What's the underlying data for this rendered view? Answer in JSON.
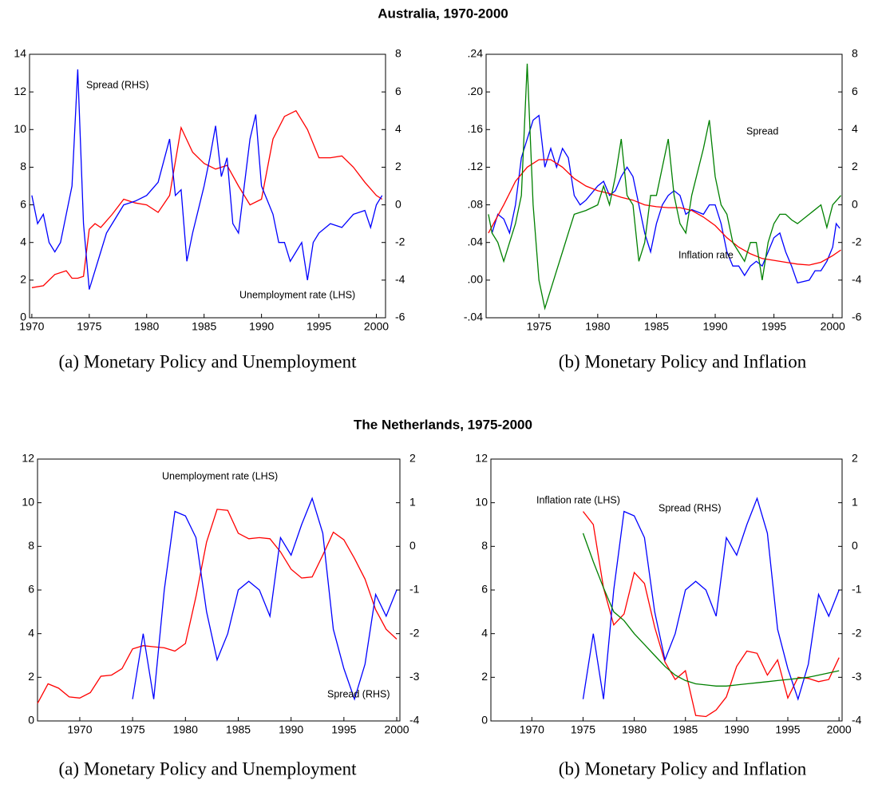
{
  "headings": [
    "Australia, 1970-2000",
    "The Netherlands, 1975-2000"
  ],
  "chart_data": [
    {
      "type": "line",
      "caption": "(a) Monetary Policy and Unemployment",
      "xlim": [
        1969.8,
        2000.8
      ],
      "xticks": [
        1970,
        1975,
        1980,
        1985,
        1990,
        1995,
        2000
      ],
      "ylim": [
        0,
        14
      ],
      "yticks": [
        0,
        2,
        4,
        6,
        8,
        10,
        12,
        14
      ],
      "y2lim": [
        -6,
        8
      ],
      "y2ticks": [
        -6,
        -4,
        -2,
        0,
        2,
        4,
        6,
        8
      ],
      "series": [
        {
          "name": "Unemployment rate (LHS)",
          "color": "#ff0000",
          "x": [
            1970,
            1971,
            1972,
            1973,
            1973.5,
            1974,
            1974.5,
            1975,
            1975.5,
            1976,
            1977,
            1978,
            1979,
            1980,
            1981,
            1982,
            1983,
            1984,
            1985,
            1986,
            1987,
            1988,
            1989,
            1990,
            1991,
            1992,
            1993,
            1994,
            1995,
            1996,
            1997,
            1998,
            1999,
            2000,
            2000.5
          ],
          "values": [
            1.6,
            1.7,
            2.3,
            2.5,
            2.1,
            2.1,
            2.2,
            4.7,
            5.0,
            4.8,
            5.5,
            6.3,
            6.1,
            6.0,
            5.6,
            6.5,
            10.1,
            8.8,
            8.2,
            7.9,
            8.1,
            7.0,
            6.0,
            6.3,
            9.5,
            10.7,
            11.0,
            10.0,
            8.5,
            8.5,
            8.6,
            8.0,
            7.2,
            6.5,
            6.3
          ]
        },
        {
          "name": "Spread (RHS)",
          "color": "#0000ff",
          "axis": "y2",
          "x": [
            1970,
            1970.5,
            1971,
            1971.5,
            1972,
            1972.5,
            1973,
            1973.5,
            1974,
            1974.5,
            1975,
            1975.5,
            1976,
            1976.5,
            1977,
            1978,
            1979,
            1980,
            1981,
            1982,
            1982.5,
            1983,
            1983.5,
            1984,
            1985,
            1985.5,
            1986,
            1986.5,
            1987,
            1987.5,
            1988,
            1988.5,
            1989,
            1989.5,
            1990,
            1991,
            1991.5,
            1992,
            1992.5,
            1993,
            1993.5,
            1994,
            1994.5,
            1995,
            1996,
            1997,
            1998,
            1999,
            1999.5,
            2000,
            2000.5
          ],
          "values": [
            0.5,
            -1.0,
            -0.5,
            -2.0,
            -2.5,
            -2.0,
            -0.5,
            1.0,
            7.2,
            -1.0,
            -4.5,
            -3.5,
            -2.5,
            -1.5,
            -1.0,
            0.0,
            0.2,
            0.5,
            1.2,
            3.5,
            0.5,
            0.8,
            -3.0,
            -1.5,
            1.0,
            2.5,
            4.2,
            1.5,
            2.5,
            -1.0,
            -1.5,
            1.0,
            3.5,
            4.8,
            1.0,
            -0.5,
            -2.0,
            -2.0,
            -3.0,
            -2.5,
            -2.0,
            -4.0,
            -2.0,
            -1.5,
            -1.0,
            -1.2,
            -0.5,
            -0.3,
            -1.2,
            0.0,
            0.5
          ]
        }
      ]
    },
    {
      "type": "line",
      "caption": "(b) Monetary Policy and Inflation",
      "xlim": [
        1970.5,
        2000.8
      ],
      "xticks": [
        1975,
        1980,
        1985,
        1990,
        1995,
        2000
      ],
      "ylim": [
        -0.04,
        0.24
      ],
      "yticks": [
        {
          "value": -0.04,
          "label": "-.04"
        },
        {
          "value": 0,
          "label": ".00"
        },
        {
          "value": 0.04,
          "label": ".04"
        },
        {
          "value": 0.08,
          "label": ".08"
        },
        {
          "value": 0.12,
          "label": ".12"
        },
        {
          "value": 0.16,
          "label": ".16"
        },
        {
          "value": 0.2,
          "label": ".20"
        },
        {
          "value": 0.24,
          "label": ".24"
        }
      ],
      "y2lim": [
        -6,
        8
      ],
      "y2ticks": [
        -6,
        -4,
        -2,
        0,
        2,
        4,
        6,
        8
      ],
      "series": [
        {
          "color": "#0000ff",
          "x": [
            1971,
            1971.5,
            1972,
            1972.5,
            1973,
            1973.5,
            1974,
            1974.5,
            1975,
            1975.5,
            1976,
            1976.5,
            1977,
            1977.5,
            1978,
            1978.5,
            1979,
            1980,
            1980.5,
            1981,
            1981.5,
            1982,
            1982.5,
            1983,
            1983.5,
            1984,
            1984.5,
            1985,
            1985.5,
            1986,
            1986.5,
            1987,
            1987.5,
            1988,
            1989,
            1989.5,
            1990,
            1990.5,
            1991,
            1991.5,
            1992,
            1992.5,
            1993,
            1993.5,
            1994,
            1994.5,
            1995,
            1995.5,
            1996,
            1996.5,
            1997,
            1998,
            1998.5,
            1999,
            1999.5,
            2000,
            2000.3,
            2000.6
          ],
          "values": [
            0.05,
            0.07,
            0.065,
            0.05,
            0.08,
            0.13,
            0.15,
            0.17,
            0.175,
            0.12,
            0.14,
            0.12,
            0.14,
            0.13,
            0.09,
            0.08,
            0.085,
            0.1,
            0.105,
            0.09,
            0.095,
            0.11,
            0.12,
            0.11,
            0.08,
            0.05,
            0.03,
            0.06,
            0.08,
            0.09,
            0.095,
            0.09,
            0.07,
            0.075,
            0.07,
            0.08,
            0.08,
            0.06,
            0.03,
            0.015,
            0.015,
            0.005,
            0.015,
            0.02,
            0.015,
            0.03,
            0.045,
            0.05,
            0.03,
            0.015,
            -0.003,
            0.0,
            0.01,
            0.01,
            0.02,
            0.035,
            0.06,
            0.055
          ]
        },
        {
          "name": "Inflation rate",
          "color": "#ff0000",
          "x": [
            1970.7,
            1972,
            1973,
            1974,
            1975,
            1976,
            1977,
            1978,
            1979,
            1980,
            1981,
            1982,
            1983,
            1984,
            1985,
            1986,
            1987,
            1988,
            1989,
            1990,
            1991,
            1992,
            1993,
            1994,
            1995,
            1996,
            1997,
            1998,
            1999,
            2000,
            2000.7
          ],
          "values": [
            0.05,
            0.08,
            0.105,
            0.12,
            0.128,
            0.128,
            0.12,
            0.108,
            0.1,
            0.095,
            0.092,
            0.088,
            0.085,
            0.08,
            0.078,
            0.077,
            0.077,
            0.074,
            0.067,
            0.058,
            0.045,
            0.035,
            0.028,
            0.023,
            0.021,
            0.019,
            0.017,
            0.016,
            0.019,
            0.026,
            0.032
          ]
        },
        {
          "name": "Spread",
          "color": "#008000",
          "axis": "y2",
          "x": [
            1970.7,
            1971,
            1971.5,
            1972,
            1972.5,
            1973,
            1973.5,
            1974,
            1974.5,
            1975,
            1975.5,
            1976,
            1976.5,
            1977,
            1977.5,
            1978,
            1979,
            1980,
            1980.5,
            1981,
            1981.5,
            1982,
            1982.5,
            1983,
            1983.5,
            1984,
            1984.5,
            1985,
            1985.5,
            1986,
            1986.5,
            1987,
            1987.5,
            1988,
            1989,
            1989.5,
            1990,
            1990.5,
            1991,
            1991.5,
            1992,
            1992.5,
            1993,
            1993.5,
            1994,
            1994.5,
            1995,
            1995.5,
            1996,
            1996.5,
            1997,
            1998,
            1999,
            1999.5,
            2000,
            2000.7
          ],
          "values": [
            -0.5,
            -1.5,
            -2.0,
            -3.0,
            -2.0,
            -1.0,
            0.5,
            7.5,
            0.0,
            -4.0,
            -5.5,
            -4.5,
            -3.5,
            -2.5,
            -1.5,
            -0.5,
            -0.3,
            0.0,
            1.0,
            0.0,
            1.5,
            3.5,
            0.5,
            0.0,
            -3.0,
            -2.0,
            0.5,
            0.5,
            2.0,
            3.5,
            0.5,
            -1.0,
            -1.5,
            0.5,
            3.0,
            4.5,
            1.5,
            0.0,
            -0.5,
            -2.0,
            -2.5,
            -3.0,
            -2.0,
            -2.0,
            -4.0,
            -2.0,
            -1.0,
            -0.5,
            -0.5,
            -0.8,
            -1.0,
            -0.5,
            0.0,
            -1.2,
            0.0,
            0.5
          ]
        }
      ]
    },
    {
      "type": "line",
      "caption": "(a) Monetary Policy and Unemployment",
      "xlim": [
        1966,
        2000.3
      ],
      "xticks": [
        1970,
        1975,
        1980,
        1985,
        1990,
        1995,
        2000
      ],
      "ylim": [
        0,
        12
      ],
      "yticks": [
        0,
        2,
        4,
        6,
        8,
        10,
        12
      ],
      "y2lim": [
        -4,
        2
      ],
      "y2ticks": [
        -4,
        -3,
        -2,
        -1,
        0,
        1,
        2
      ],
      "series": [
        {
          "name": "Unemployment rate (LHS)",
          "color": "#ff0000",
          "x": [
            1966,
            1967,
            1968,
            1969,
            1970,
            1971,
            1972,
            1973,
            1974,
            1975,
            1976,
            1977,
            1978,
            1979,
            1980,
            1981,
            1982,
            1983,
            1984,
            1985,
            1986,
            1987,
            1988,
            1989,
            1990,
            1991,
            1992,
            1993,
            1994,
            1995,
            1996,
            1997,
            1998,
            1999,
            2000
          ],
          "values": [
            0.8,
            1.7,
            1.5,
            1.1,
            1.05,
            1.3,
            2.05,
            2.1,
            2.4,
            3.3,
            3.45,
            3.4,
            3.35,
            3.2,
            3.55,
            5.7,
            8.2,
            9.7,
            9.65,
            8.6,
            8.35,
            8.4,
            8.35,
            7.75,
            6.95,
            6.55,
            6.6,
            7.6,
            8.65,
            8.3,
            7.45,
            6.5,
            5.1,
            4.2,
            3.75
          ]
        },
        {
          "name": "Spread (RHS)",
          "color": "#0000ff",
          "axis": "y2",
          "x": [
            1975,
            1976,
            1977,
            1978,
            1979,
            1980,
            1981,
            1982,
            1983,
            1984,
            1985,
            1986,
            1987,
            1988,
            1989,
            1990,
            1991,
            1992,
            1993,
            1994,
            1995,
            1996,
            1997,
            1998,
            1999,
            2000
          ],
          "values": [
            -3.5,
            -2.0,
            -3.5,
            -1.0,
            0.8,
            0.7,
            0.2,
            -1.5,
            -2.6,
            -2.0,
            -1.0,
            -0.8,
            -1.0,
            -1.6,
            0.2,
            -0.2,
            0.5,
            1.1,
            0.3,
            -1.9,
            -2.8,
            -3.5,
            -2.7,
            -1.1,
            -1.6,
            -1.0
          ]
        }
      ]
    },
    {
      "type": "line",
      "caption": "(b) Monetary Policy and Inflation",
      "xlim": [
        1966,
        2000.3
      ],
      "xticks": [
        1970,
        1975,
        1980,
        1985,
        1990,
        1995,
        2000
      ],
      "ylim": [
        0,
        12
      ],
      "yticks": [
        0,
        2,
        4,
        6,
        8,
        10,
        12
      ],
      "y2lim": [
        -4,
        2
      ],
      "y2ticks": [
        -4,
        -3,
        -2,
        -1,
        0,
        1,
        2
      ],
      "series": [
        {
          "name": "Inflation rate (LHS)",
          "color": "#ff0000",
          "x": [
            1975,
            1976,
            1977,
            1978,
            1979,
            1980,
            1981,
            1982,
            1983,
            1984,
            1985,
            1986,
            1987,
            1988,
            1989,
            1990,
            1991,
            1992,
            1993,
            1994,
            1995,
            1996,
            1997,
            1998,
            1999,
            2000
          ],
          "values": [
            9.6,
            9.0,
            6.1,
            4.4,
            4.9,
            6.8,
            6.3,
            4.3,
            2.7,
            1.9,
            2.3,
            0.25,
            0.2,
            0.5,
            1.1,
            2.5,
            3.2,
            3.1,
            2.1,
            2.8,
            1.05,
            2.0,
            1.95,
            1.8,
            1.9,
            2.9
          ]
        },
        {
          "name": "Spread (RHS)",
          "color": "#0000ff",
          "axis": "y2",
          "x": [
            1975,
            1976,
            1977,
            1978,
            1979,
            1980,
            1981,
            1982,
            1983,
            1984,
            1985,
            1986,
            1987,
            1988,
            1989,
            1990,
            1991,
            1992,
            1993,
            1994,
            1995,
            1996,
            1997,
            1998,
            1999,
            2000
          ],
          "values": [
            -3.5,
            -2.0,
            -3.5,
            -1.0,
            0.8,
            0.7,
            0.2,
            -1.5,
            -2.6,
            -2.0,
            -1.0,
            -0.8,
            -1.0,
            -1.6,
            0.2,
            -0.2,
            0.5,
            1.1,
            0.3,
            -1.9,
            -2.8,
            -3.5,
            -2.7,
            -1.1,
            -1.6,
            -1.0
          ]
        },
        {
          "color": "#008000",
          "x": [
            1975,
            1976,
            1977,
            1978,
            1979,
            1980,
            1981,
            1982,
            1983,
            1984,
            1985,
            1986,
            1987,
            1988,
            1989,
            1990,
            1991,
            1992,
            1993,
            1994,
            1995,
            1996,
            1997,
            1998,
            1999,
            2000
          ],
          "values": [
            8.6,
            7.3,
            6.1,
            5.0,
            4.6,
            4.0,
            3.5,
            3.0,
            2.5,
            2.1,
            1.85,
            1.7,
            1.65,
            1.6,
            1.6,
            1.65,
            1.7,
            1.75,
            1.8,
            1.85,
            1.9,
            1.95,
            2.0,
            2.1,
            2.2,
            2.3
          ]
        }
      ]
    }
  ]
}
